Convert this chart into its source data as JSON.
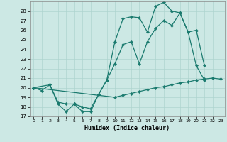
{
  "xlabel": "Humidex (Indice chaleur)",
  "bg_color": "#cce8e4",
  "grid_color": "#aed4cf",
  "line_color": "#1a7a6e",
  "xlim": [
    -0.5,
    23.5
  ],
  "ylim": [
    17,
    29
  ],
  "yticks": [
    17,
    18,
    19,
    20,
    21,
    22,
    23,
    24,
    25,
    26,
    27,
    28
  ],
  "xticks": [
    0,
    1,
    2,
    3,
    4,
    5,
    6,
    7,
    8,
    9,
    10,
    11,
    12,
    13,
    14,
    15,
    16,
    17,
    18,
    19,
    20,
    21,
    22,
    23
  ],
  "line1_x": [
    0,
    1,
    2,
    3,
    4,
    5,
    6,
    7,
    8,
    9,
    10,
    11,
    12,
    13,
    14,
    15,
    16,
    17,
    18,
    19,
    20,
    21
  ],
  "line1_y": [
    20.0,
    19.7,
    20.3,
    18.3,
    17.5,
    18.3,
    17.5,
    17.5,
    19.3,
    20.8,
    24.8,
    27.2,
    27.4,
    27.3,
    25.8,
    28.5,
    28.9,
    28.0,
    27.8,
    25.8,
    22.3,
    20.8
  ],
  "line2_x": [
    0,
    2,
    3,
    4,
    5,
    6,
    7,
    8,
    9,
    10,
    11,
    12,
    13,
    14,
    15,
    16,
    17,
    18,
    19,
    20,
    21
  ],
  "line2_y": [
    20.0,
    20.3,
    18.5,
    18.3,
    18.3,
    18.0,
    17.8,
    19.3,
    20.8,
    22.5,
    24.5,
    24.8,
    22.5,
    24.8,
    26.2,
    27.0,
    26.5,
    27.8,
    25.8,
    26.0,
    22.3
  ],
  "line3_x": [
    0,
    10,
    11,
    12,
    13,
    14,
    15,
    16,
    17,
    18,
    19,
    20,
    21,
    22,
    23
  ],
  "line3_y": [
    20.0,
    19.0,
    19.2,
    19.4,
    19.6,
    19.8,
    20.0,
    20.1,
    20.3,
    20.5,
    20.6,
    20.8,
    20.9,
    21.0,
    20.9
  ]
}
